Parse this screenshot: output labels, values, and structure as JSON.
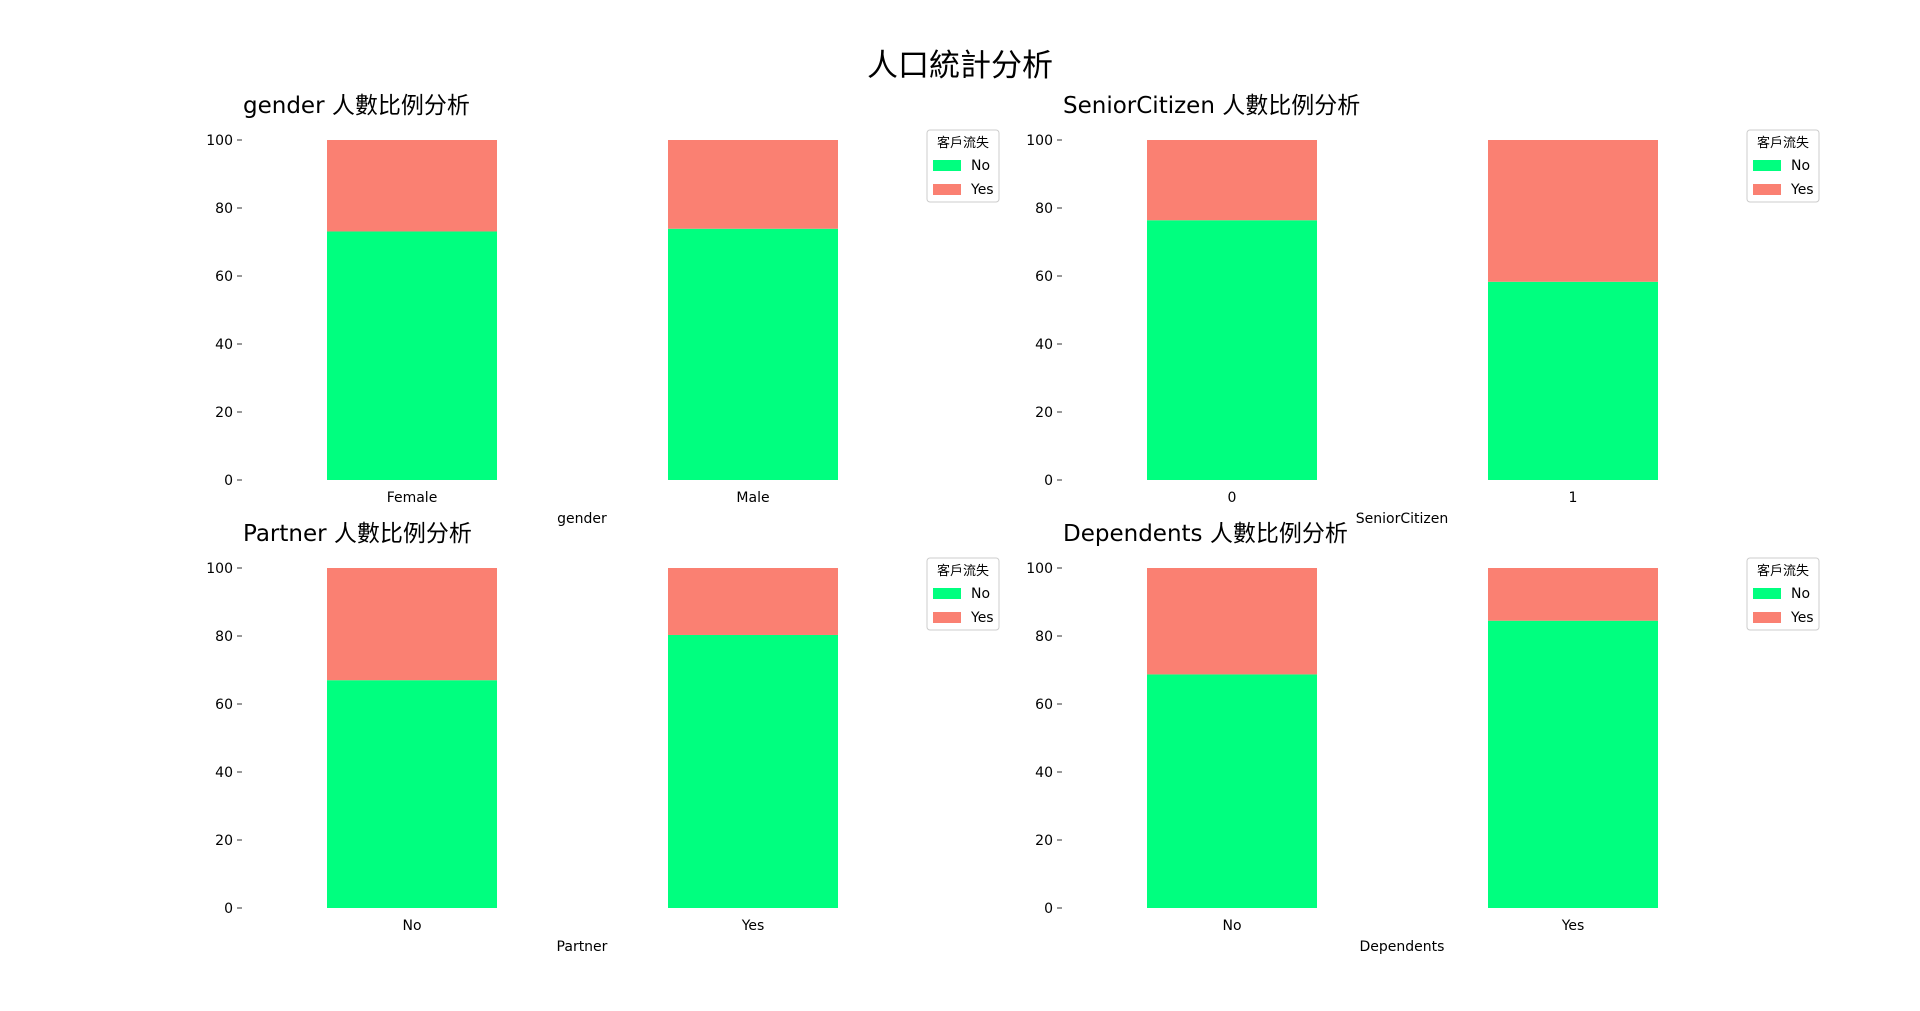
{
  "suptitle": "人口統計分析",
  "colors": {
    "No": "#00ff7f",
    "Yes": "#fa8072"
  },
  "chart_data": [
    {
      "type": "bar",
      "stacked": true,
      "title": "gender 人數比例分析",
      "xlabel": "gender",
      "ylabel": "",
      "categories": [
        "Female",
        "Male"
      ],
      "series": [
        {
          "name": "No",
          "values": [
            73.1,
            73.9
          ]
        },
        {
          "name": "Yes",
          "values": [
            26.9,
            26.1
          ]
        }
      ],
      "ylim": [
        0,
        100
      ],
      "yticks": [
        "0",
        "20",
        "40",
        "60",
        "80",
        "100"
      ],
      "legend": {
        "title": "客戶流失",
        "placement": "top-right"
      },
      "grid": false
    },
    {
      "type": "bar",
      "stacked": true,
      "title": "SeniorCitizen 人數比例分析",
      "xlabel": "SeniorCitizen",
      "ylabel": "",
      "categories": [
        "0",
        "1"
      ],
      "series": [
        {
          "name": "No",
          "values": [
            76.4,
            58.3
          ]
        },
        {
          "name": "Yes",
          "values": [
            23.6,
            41.7
          ]
        }
      ],
      "ylim": [
        0,
        100
      ],
      "yticks": [
        "0",
        "20",
        "40",
        "60",
        "80",
        "100"
      ],
      "legend": {
        "title": "客戶流失",
        "placement": "top-right"
      },
      "grid": false
    },
    {
      "type": "bar",
      "stacked": true,
      "title": "Partner 人數比例分析",
      "xlabel": "Partner",
      "ylabel": "",
      "categories": [
        "No",
        "Yes"
      ],
      "series": [
        {
          "name": "No",
          "values": [
            67.0,
            80.3
          ]
        },
        {
          "name": "Yes",
          "values": [
            33.0,
            19.7
          ]
        }
      ],
      "ylim": [
        0,
        100
      ],
      "yticks": [
        "0",
        "20",
        "40",
        "60",
        "80",
        "100"
      ],
      "legend": {
        "title": "客戶流失",
        "placement": "top-right"
      },
      "grid": false
    },
    {
      "type": "bar",
      "stacked": true,
      "title": "Dependents 人數比例分析",
      "xlabel": "Dependents",
      "ylabel": "",
      "categories": [
        "No",
        "Yes"
      ],
      "series": [
        {
          "name": "No",
          "values": [
            68.7,
            84.5
          ]
        },
        {
          "name": "Yes",
          "values": [
            31.3,
            15.5
          ]
        }
      ],
      "ylim": [
        0,
        100
      ],
      "yticks": [
        "0",
        "20",
        "40",
        "60",
        "80",
        "100"
      ],
      "legend": {
        "title": "客戶流失",
        "placement": "top-right"
      },
      "grid": false
    }
  ]
}
